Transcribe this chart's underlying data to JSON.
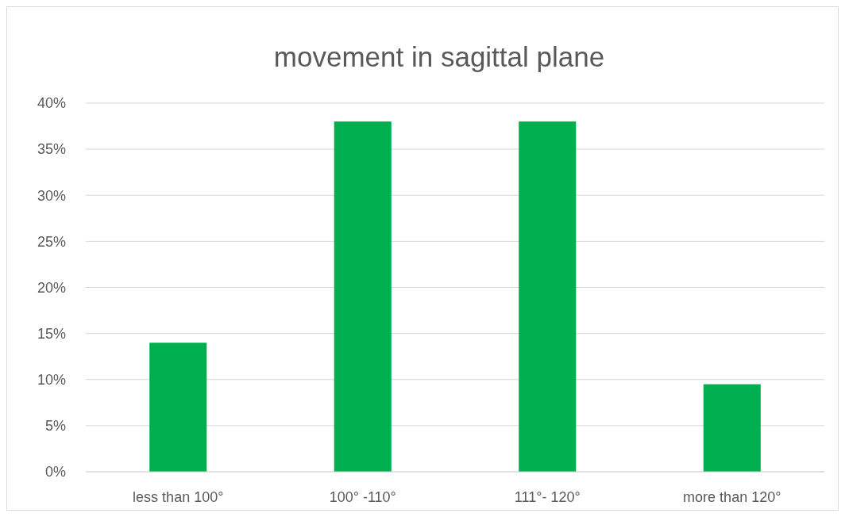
{
  "chart_data": {
    "type": "bar",
    "title": "movement in sagittal plane",
    "categories": [
      "less than 100°",
      "100° -110°",
      "111°- 120°",
      "more than 120°"
    ],
    "values": [
      14,
      38,
      38,
      9.5
    ],
    "color": "#00b050",
    "ylim": [
      0,
      40
    ],
    "yticks": [
      {
        "value": 0,
        "label": "0%"
      },
      {
        "value": 5,
        "label": "5%"
      },
      {
        "value": 10,
        "label": "10%"
      },
      {
        "value": 15,
        "label": "15%"
      },
      {
        "value": 20,
        "label": "20%"
      },
      {
        "value": 25,
        "label": "25%"
      },
      {
        "value": 30,
        "label": "30%"
      },
      {
        "value": 35,
        "label": "35%"
      },
      {
        "value": 40,
        "label": "40%"
      }
    ],
    "grid": "y"
  }
}
